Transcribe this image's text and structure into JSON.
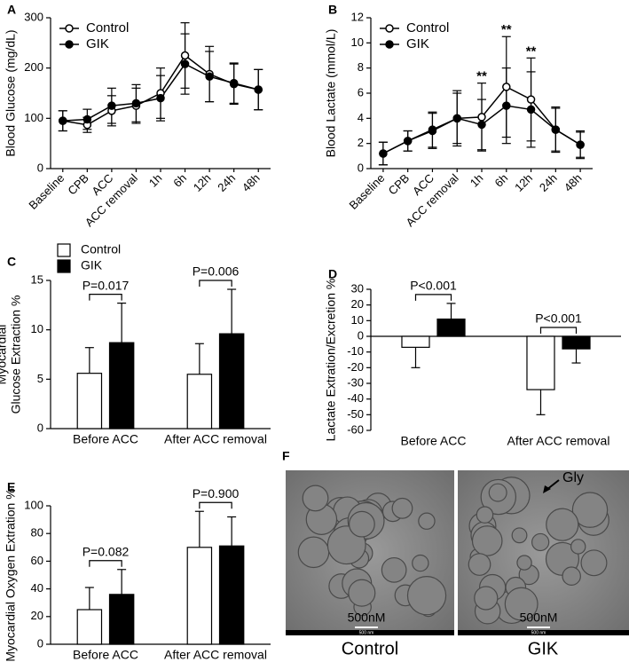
{
  "chart_data": [
    {
      "panel": "A",
      "type": "line",
      "ylabel": "Blood Glucose (mg/dL)",
      "categories": [
        "Baseline",
        "CPB",
        "ACC",
        "ACC removal",
        "1h",
        "6h",
        "12h",
        "24h",
        "48h"
      ],
      "ylim": [
        0,
        300
      ],
      "yticks": [
        0,
        100,
        200,
        300
      ],
      "legend": "upper left",
      "series": [
        {
          "name": "Control",
          "color": "#000000",
          "marker_fill": "#ffffff",
          "values": [
            95,
            87,
            115,
            125,
            150,
            225,
            188,
            168,
            157
          ],
          "errors": [
            20,
            15,
            30,
            35,
            50,
            65,
            55,
            40,
            40
          ]
        },
        {
          "name": "GIK",
          "color": "#000000",
          "marker_fill": "#000000",
          "values": [
            95,
            98,
            125,
            130,
            140,
            208,
            183,
            170,
            157
          ],
          "errors": [
            20,
            20,
            35,
            37,
            45,
            60,
            50,
            40,
            40
          ]
        }
      ]
    },
    {
      "panel": "B",
      "type": "line",
      "ylabel": "Blood Lactate (mmol/L)",
      "categories": [
        "Baseline",
        "CPB",
        "ACC",
        "ACC removal",
        "1h",
        "6h",
        "12h",
        "24h",
        "48h"
      ],
      "ylim": [
        0,
        12
      ],
      "yticks": [
        0,
        2,
        4,
        6,
        8,
        10,
        12
      ],
      "legend": "upper left",
      "series": [
        {
          "name": "Control",
          "color": "#000000",
          "marker_fill": "#ffffff",
          "values": [
            1.2,
            2.2,
            3.1,
            4.0,
            4.1,
            6.5,
            5.5,
            3.1,
            1.9
          ],
          "errors": [
            0.9,
            0.8,
            1.4,
            2.2,
            2.7,
            4.0,
            3.3,
            1.8,
            1.1
          ]
        },
        {
          "name": "GIK",
          "color": "#000000",
          "marker_fill": "#000000",
          "values": [
            1.2,
            2.2,
            3.0,
            4.0,
            3.5,
            5.0,
            4.7,
            3.1,
            1.9
          ],
          "errors": [
            0.9,
            0.8,
            1.4,
            2.0,
            2.0,
            3.0,
            3.0,
            1.7,
            1.0
          ]
        }
      ],
      "annotations": [
        {
          "text": "**",
          "category": 4
        },
        {
          "text": "**",
          "category": 5
        },
        {
          "text": "**",
          "category": 6
        }
      ]
    },
    {
      "panel": "C",
      "type": "bar",
      "ylabel": [
        "Myocardial",
        "Glucose Extraction %"
      ],
      "categories": [
        "Before ACC",
        "After ACC removal"
      ],
      "ylim": [
        0,
        15
      ],
      "yticks": [
        0,
        5,
        10,
        15
      ],
      "legend": "upper left",
      "series": [
        {
          "name": "Control",
          "color": "#ffffff",
          "values": [
            5.6,
            5.5
          ],
          "errors": [
            2.6,
            3.1
          ]
        },
        {
          "name": "GIK",
          "color": "#000000",
          "values": [
            8.7,
            9.6
          ],
          "errors": [
            4.0,
            4.5
          ]
        }
      ],
      "annotations": [
        {
          "text": "P=0.017",
          "category": 0
        },
        {
          "text": "P=0.006",
          "category": 1
        }
      ]
    },
    {
      "panel": "D",
      "type": "bar",
      "ylabel": "Lactate Extration/Excretion %",
      "categories": [
        "Before ACC",
        "After ACC removal"
      ],
      "ylim": [
        -60,
        30
      ],
      "yticks": [
        -60,
        -50,
        -40,
        -30,
        -20,
        -10,
        0,
        10,
        20,
        30
      ],
      "series": [
        {
          "color": "#ffffff",
          "values": [
            -7,
            -34
          ],
          "errors": [
            13,
            16
          ]
        },
        {
          "color": "#000000",
          "values": [
            11,
            -8
          ],
          "errors": [
            10,
            9
          ]
        }
      ],
      "annotations": [
        {
          "text": "P<0.001",
          "category": 0
        },
        {
          "text": "P<0.001",
          "category": 1
        }
      ]
    },
    {
      "panel": "E",
      "type": "bar",
      "ylabel": "Myocardial Oxygen Extration %",
      "categories": [
        "Before ACC",
        "After ACC removal"
      ],
      "ylim": [
        0,
        100
      ],
      "yticks": [
        0,
        20,
        40,
        60,
        80,
        100
      ],
      "series": [
        {
          "color": "#ffffff",
          "values": [
            25,
            70
          ],
          "errors": [
            16,
            26
          ]
        },
        {
          "color": "#000000",
          "values": [
            36,
            71
          ],
          "errors": [
            18,
            21
          ]
        }
      ],
      "annotations": [
        {
          "text": "P=0.082",
          "category": 0
        },
        {
          "text": "P=0.900",
          "category": 1
        }
      ]
    }
  ],
  "panel_f": {
    "panel": "F",
    "images": [
      {
        "caption": "Control",
        "scale_label": "500nM",
        "scale_bar_text": "500 nm"
      },
      {
        "caption": "GIK",
        "scale_label": "500nM",
        "scale_bar_text": "500 nm",
        "annotation": "Gly"
      }
    ]
  }
}
